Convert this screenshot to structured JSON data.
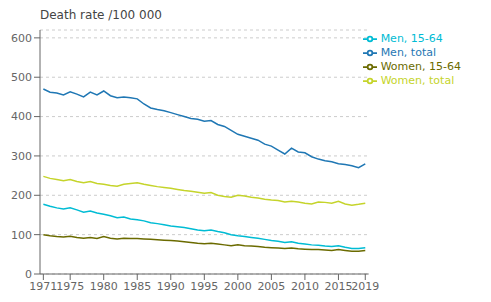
{
  "chart_data": {
    "type": "line",
    "ylabel": "Death rate /100 000",
    "x": [
      1971,
      1972,
      1973,
      1974,
      1975,
      1976,
      1977,
      1978,
      1979,
      1980,
      1981,
      1982,
      1983,
      1984,
      1985,
      1986,
      1987,
      1988,
      1989,
      1990,
      1991,
      1992,
      1993,
      1994,
      1995,
      1996,
      1997,
      1998,
      1999,
      2000,
      2001,
      2002,
      2003,
      2004,
      2005,
      2006,
      2007,
      2008,
      2009,
      2010,
      2011,
      2012,
      2013,
      2014,
      2015,
      2016,
      2017,
      2018,
      2019
    ],
    "series": [
      {
        "name": "Men, total",
        "color": "#1f77b4",
        "values": [
          470,
          462,
          460,
          455,
          463,
          457,
          450,
          462,
          455,
          465,
          453,
          448,
          450,
          448,
          445,
          432,
          422,
          418,
          415,
          410,
          405,
          400,
          395,
          393,
          388,
          390,
          380,
          375,
          365,
          355,
          350,
          345,
          340,
          330,
          325,
          315,
          305,
          320,
          310,
          308,
          298,
          292,
          288,
          285,
          280,
          278,
          275,
          270,
          280
        ]
      },
      {
        "name": "Women, total",
        "color": "#c5d42b",
        "values": [
          248,
          243,
          240,
          237,
          240,
          235,
          232,
          235,
          230,
          228,
          225,
          223,
          228,
          230,
          232,
          228,
          225,
          222,
          220,
          218,
          215,
          212,
          210,
          208,
          205,
          207,
          200,
          197,
          195,
          200,
          198,
          195,
          193,
          190,
          188,
          187,
          183,
          185,
          183,
          180,
          178,
          183,
          182,
          180,
          185,
          178,
          175,
          177,
          180
        ]
      },
      {
        "name": "Men, 15-64",
        "color": "#00bcd4",
        "values": [
          177,
          172,
          168,
          165,
          168,
          163,
          157,
          160,
          155,
          152,
          148,
          143,
          145,
          140,
          138,
          135,
          130,
          128,
          125,
          122,
          120,
          118,
          115,
          112,
          110,
          112,
          108,
          105,
          100,
          97,
          95,
          93,
          91,
          88,
          85,
          83,
          80,
          82,
          78,
          76,
          74,
          73,
          71,
          70,
          72,
          68,
          65,
          65,
          67
        ]
      },
      {
        "name": "Women, 15-64",
        "color": "#6b6b00",
        "values": [
          100,
          97,
          95,
          94,
          96,
          93,
          91,
          93,
          90,
          95,
          91,
          89,
          91,
          90,
          90,
          89,
          88,
          87,
          86,
          85,
          84,
          82,
          80,
          78,
          77,
          78,
          76,
          74,
          72,
          74,
          72,
          71,
          70,
          68,
          67,
          66,
          65,
          66,
          64,
          63,
          62,
          62,
          61,
          60,
          62,
          60,
          58,
          58,
          60
        ]
      }
    ],
    "xlim": [
      1970.5,
      2019.5
    ],
    "xticks": [
      1971,
      1975,
      1980,
      1985,
      1990,
      1995,
      2000,
      2005,
      2010,
      2015,
      2019
    ],
    "ylim": [
      0,
      620
    ],
    "yticks": [
      0,
      100,
      200,
      300,
      400,
      500,
      600
    ],
    "grid": "y",
    "legend": "upper right"
  }
}
